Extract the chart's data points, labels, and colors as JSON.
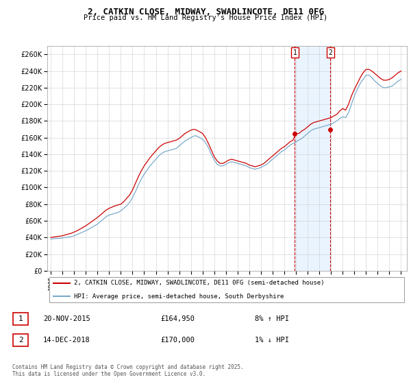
{
  "title": "2, CATKIN CLOSE, MIDWAY, SWADLINCOTE, DE11 0FG",
  "subtitle": "Price paid vs. HM Land Registry's House Price Index (HPI)",
  "ylim": [
    0,
    270000
  ],
  "yticks": [
    0,
    20000,
    40000,
    60000,
    80000,
    100000,
    120000,
    140000,
    160000,
    180000,
    200000,
    220000,
    240000,
    260000
  ],
  "xlim_start": 1994.7,
  "xlim_end": 2025.5,
  "legend_label_red": "2, CATKIN CLOSE, MIDWAY, SWADLINCOTE, DE11 0FG (semi-detached house)",
  "legend_label_blue": "HPI: Average price, semi-detached house, South Derbyshire",
  "sale1_label": "1",
  "sale1_date": "20-NOV-2015",
  "sale1_price": "£164,950",
  "sale1_hpi": "8% ↑ HPI",
  "sale1_year": 2015.9,
  "sale1_value": 164950,
  "sale2_label": "2",
  "sale2_date": "14-DEC-2018",
  "sale2_price": "£170,000",
  "sale2_hpi": "1% ↓ HPI",
  "sale2_year": 2018.95,
  "sale2_value": 170000,
  "copyright_text": "Contains HM Land Registry data © Crown copyright and database right 2025.\nThis data is licensed under the Open Government Licence v3.0.",
  "red_color": "#cc0000",
  "blue_color": "#7aaacc",
  "sale_marker_color": "#cc0000",
  "annotation_box_color": "#cc0000",
  "shading_color": "#ddeeff",
  "bg_color": "#f0f4f8",
  "hpi_data_x": [
    1995.0,
    1995.25,
    1995.5,
    1995.75,
    1996.0,
    1996.25,
    1996.5,
    1996.75,
    1997.0,
    1997.25,
    1997.5,
    1997.75,
    1998.0,
    1998.25,
    1998.5,
    1998.75,
    1999.0,
    1999.25,
    1999.5,
    1999.75,
    2000.0,
    2000.25,
    2000.5,
    2000.75,
    2001.0,
    2001.25,
    2001.5,
    2001.75,
    2002.0,
    2002.25,
    2002.5,
    2002.75,
    2003.0,
    2003.25,
    2003.5,
    2003.75,
    2004.0,
    2004.25,
    2004.5,
    2004.75,
    2005.0,
    2005.25,
    2005.5,
    2005.75,
    2006.0,
    2006.25,
    2006.5,
    2006.75,
    2007.0,
    2007.25,
    2007.5,
    2007.75,
    2008.0,
    2008.25,
    2008.5,
    2008.75,
    2009.0,
    2009.25,
    2009.5,
    2009.75,
    2010.0,
    2010.25,
    2010.5,
    2010.75,
    2011.0,
    2011.25,
    2011.5,
    2011.75,
    2012.0,
    2012.25,
    2012.5,
    2012.75,
    2013.0,
    2013.25,
    2013.5,
    2013.75,
    2014.0,
    2014.25,
    2014.5,
    2014.75,
    2015.0,
    2015.25,
    2015.5,
    2015.75,
    2016.0,
    2016.25,
    2016.5,
    2016.75,
    2017.0,
    2017.25,
    2017.5,
    2017.75,
    2018.0,
    2018.25,
    2018.5,
    2018.75,
    2019.0,
    2019.25,
    2019.5,
    2019.75,
    2020.0,
    2020.25,
    2020.5,
    2020.75,
    2021.0,
    2021.25,
    2021.5,
    2021.75,
    2022.0,
    2022.25,
    2022.5,
    2022.75,
    2023.0,
    2023.25,
    2023.5,
    2023.75,
    2024.0,
    2024.25,
    2024.5,
    2024.75,
    2025.0
  ],
  "hpi_data_y": [
    38000,
    38500,
    38800,
    39000,
    39500,
    40000,
    40500,
    41000,
    42000,
    43500,
    45000,
    46500,
    48000,
    50000,
    52000,
    54000,
    56000,
    59000,
    62000,
    65000,
    67000,
    68000,
    69000,
    70000,
    72000,
    75000,
    78000,
    82000,
    88000,
    95000,
    103000,
    110000,
    116000,
    121000,
    126000,
    130000,
    134000,
    138000,
    141000,
    143000,
    144000,
    145000,
    146000,
    147000,
    150000,
    153000,
    156000,
    158000,
    160000,
    162000,
    162000,
    160000,
    158000,
    154000,
    148000,
    140000,
    133000,
    128000,
    126000,
    126000,
    128000,
    130000,
    131000,
    130000,
    129000,
    128000,
    127000,
    126000,
    124000,
    123000,
    122000,
    123000,
    124000,
    126000,
    128000,
    131000,
    134000,
    137000,
    140000,
    143000,
    145000,
    148000,
    151000,
    153000,
    155000,
    157000,
    159000,
    162000,
    165000,
    168000,
    170000,
    171000,
    172000,
    173000,
    174000,
    175000,
    176000,
    178000,
    180000,
    183000,
    185000,
    184000,
    190000,
    200000,
    210000,
    218000,
    225000,
    230000,
    235000,
    235000,
    232000,
    228000,
    225000,
    222000,
    220000,
    220000,
    221000,
    222000,
    225000,
    228000,
    230000
  ],
  "price_data_x": [
    1995.0,
    1995.25,
    1995.5,
    1995.75,
    1996.0,
    1996.25,
    1996.5,
    1996.75,
    1997.0,
    1997.25,
    1997.5,
    1997.75,
    1998.0,
    1998.25,
    1998.5,
    1998.75,
    1999.0,
    1999.25,
    1999.5,
    1999.75,
    2000.0,
    2000.25,
    2000.5,
    2000.75,
    2001.0,
    2001.25,
    2001.5,
    2001.75,
    2002.0,
    2002.25,
    2002.5,
    2002.75,
    2003.0,
    2003.25,
    2003.5,
    2003.75,
    2004.0,
    2004.25,
    2004.5,
    2004.75,
    2005.0,
    2005.25,
    2005.5,
    2005.75,
    2006.0,
    2006.25,
    2006.5,
    2006.75,
    2007.0,
    2007.25,
    2007.5,
    2007.75,
    2008.0,
    2008.25,
    2008.5,
    2008.75,
    2009.0,
    2009.25,
    2009.5,
    2009.75,
    2010.0,
    2010.25,
    2010.5,
    2010.75,
    2011.0,
    2011.25,
    2011.5,
    2011.75,
    2012.0,
    2012.25,
    2012.5,
    2012.75,
    2013.0,
    2013.25,
    2013.5,
    2013.75,
    2014.0,
    2014.25,
    2014.5,
    2014.75,
    2015.0,
    2015.25,
    2015.5,
    2015.75,
    2016.0,
    2016.25,
    2016.5,
    2016.75,
    2017.0,
    2017.25,
    2017.5,
    2017.75,
    2018.0,
    2018.25,
    2018.5,
    2018.75,
    2019.0,
    2019.25,
    2019.5,
    2019.75,
    2020.0,
    2020.25,
    2020.5,
    2020.75,
    2021.0,
    2021.25,
    2021.5,
    2021.75,
    2022.0,
    2022.25,
    2022.5,
    2022.75,
    2023.0,
    2023.25,
    2023.5,
    2023.75,
    2024.0,
    2024.25,
    2024.5,
    2024.75,
    2025.0
  ],
  "price_data_y": [
    40000,
    40500,
    41000,
    41500,
    42000,
    43000,
    44000,
    45000,
    46500,
    48000,
    50000,
    52000,
    54000,
    56500,
    59000,
    61500,
    64000,
    67000,
    70000,
    73000,
    75000,
    76500,
    78000,
    79000,
    80000,
    83000,
    87000,
    91000,
    97000,
    105000,
    113000,
    120000,
    126000,
    131000,
    136000,
    140000,
    144000,
    148000,
    151000,
    153000,
    154000,
    155000,
    156000,
    157000,
    159000,
    162000,
    165000,
    167000,
    169000,
    170000,
    169000,
    167000,
    165000,
    160000,
    153000,
    145000,
    137000,
    132000,
    129000,
    129000,
    131000,
    133000,
    134000,
    133000,
    132000,
    131000,
    130000,
    129000,
    127000,
    126000,
    125000,
    126000,
    127000,
    129000,
    132000,
    135000,
    138000,
    141000,
    144000,
    147000,
    149000,
    152000,
    155000,
    157000,
    164950,
    164950,
    168000,
    170000,
    173000,
    176000,
    178000,
    179000,
    180000,
    181000,
    182000,
    183000,
    184000,
    186000,
    188000,
    192000,
    195000,
    193000,
    200000,
    210000,
    218000,
    225000,
    232000,
    238000,
    242000,
    242000,
    240000,
    237000,
    234000,
    231000,
    229000,
    229000,
    230000,
    232000,
    235000,
    238000,
    240000
  ]
}
